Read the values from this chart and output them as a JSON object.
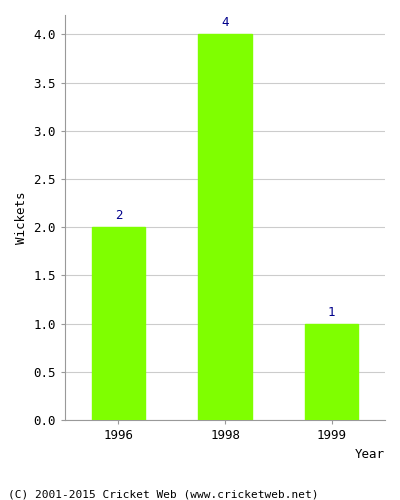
{
  "years": [
    "1996",
    "1998",
    "1999"
  ],
  "wickets": [
    2,
    4,
    1
  ],
  "bar_color": "#7FFF00",
  "bar_edge_color": "#7FFF00",
  "xlabel": "Year",
  "ylabel": "Wickets",
  "ylim": [
    0,
    4.2
  ],
  "yticks": [
    0.0,
    0.5,
    1.0,
    1.5,
    2.0,
    2.5,
    3.0,
    3.5,
    4.0
  ],
  "label_color": "#00008B",
  "label_fontsize": 9,
  "axis_label_fontsize": 9,
  "tick_fontsize": 9,
  "footer_text": "(C) 2001-2015 Cricket Web (www.cricketweb.net)",
  "footer_fontsize": 8,
  "background_color": "#ffffff",
  "plot_bg_color": "#ffffff",
  "grid_color": "#cccccc"
}
